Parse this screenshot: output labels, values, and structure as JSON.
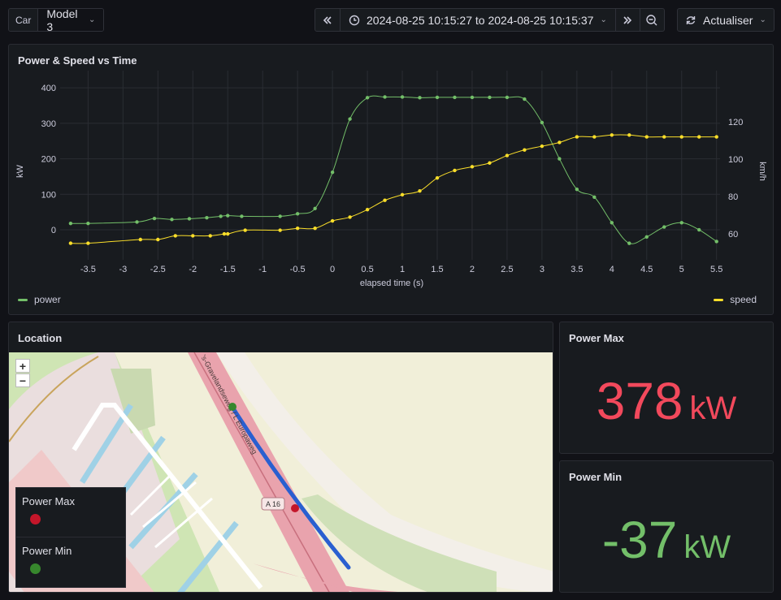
{
  "toolbar": {
    "variable_label": "Car",
    "variable_value": "Model 3",
    "time_range": "2024-08-25 10:15:27 to 2024-08-25 10:15:37",
    "refresh_label": "Actualiser"
  },
  "chart_panel": {
    "title": "Power & Speed vs Time",
    "legend_left": "power",
    "legend_right": "speed",
    "colors": {
      "power": "#73bf69",
      "speed": "#fade2a"
    }
  },
  "chart_data": {
    "type": "line",
    "title": "Power & Speed vs Time",
    "xlabel": "elapsed time (s)",
    "ylabel_left": "kW",
    "ylabel_right": "km/h",
    "xlim": [
      -3.9,
      5.55
    ],
    "ylim_left": [
      -80,
      430
    ],
    "ylim_right": [
      47,
      144
    ],
    "x_ticks": [
      -3.5,
      -3,
      -2.5,
      -2,
      -1.5,
      -1,
      -0.5,
      0,
      0.5,
      1,
      1.5,
      2,
      2.5,
      3,
      3.5,
      4,
      4.5,
      5,
      5.5
    ],
    "y_ticks_left": [
      0,
      100,
      200,
      300,
      400
    ],
    "y_ticks_right": [
      60,
      80,
      100,
      120
    ],
    "grid": true,
    "series": [
      {
        "name": "power",
        "axis": "left",
        "x": [
          -3.75,
          -3.5,
          -2.8,
          -2.55,
          -2.3,
          -2.05,
          -1.8,
          -1.6,
          -1.5,
          -1.3,
          -0.75,
          -0.5,
          -0.25,
          0,
          0.25,
          0.5,
          0.75,
          1,
          1.25,
          1.5,
          1.75,
          2,
          2.25,
          2.5,
          2.75,
          3,
          3.25,
          3.5,
          3.75,
          4,
          4.25,
          4.5,
          4.75,
          5,
          5.25,
          5.5
        ],
        "y": [
          18,
          18,
          22,
          32,
          29,
          31,
          34,
          38,
          40,
          38,
          38,
          45,
          60,
          162,
          312,
          372,
          374,
          374,
          372,
          373,
          373,
          373,
          373,
          373,
          368,
          302,
          200,
          114,
          92,
          20,
          -38,
          -20,
          8,
          20,
          0,
          -33
        ]
      },
      {
        "name": "speed",
        "axis": "right",
        "x": [
          -3.75,
          -3.5,
          -2.75,
          -2.5,
          -2.25,
          -2,
          -1.75,
          -1.55,
          -1.5,
          -1.25,
          -0.75,
          -0.5,
          -0.25,
          0,
          0.25,
          0.5,
          0.75,
          1,
          1.25,
          1.5,
          1.75,
          2,
          2.25,
          2.5,
          2.75,
          3,
          3.25,
          3.5,
          3.75,
          4,
          4.25,
          4.5,
          4.75,
          5,
          5.25,
          5.5
        ],
        "y": [
          55,
          55,
          57,
          57,
          59,
          59,
          59,
          60,
          60,
          62,
          62,
          63,
          63,
          67,
          69,
          73,
          78,
          81,
          83,
          90,
          94,
          96,
          98,
          102,
          105,
          107,
          109,
          112,
          112,
          113,
          113,
          112,
          112,
          112,
          112,
          112
        ]
      }
    ]
  },
  "location_panel": {
    "title": "Location",
    "zoom_in": "+",
    "zoom_out": "−",
    "road_label": "A 16",
    "street_label": "'s-Gravelandseweg / L Europaweg",
    "legend": [
      {
        "label": "Power Max",
        "color": "#c4162a"
      },
      {
        "label": "Power Min",
        "color": "#37872d"
      }
    ]
  },
  "stat_max": {
    "title": "Power Max",
    "value": "378",
    "unit": "kW",
    "color": "#f2495c"
  },
  "stat_min": {
    "title": "Power Min",
    "value": "-37",
    "unit": "kW",
    "color": "#73bf69"
  }
}
